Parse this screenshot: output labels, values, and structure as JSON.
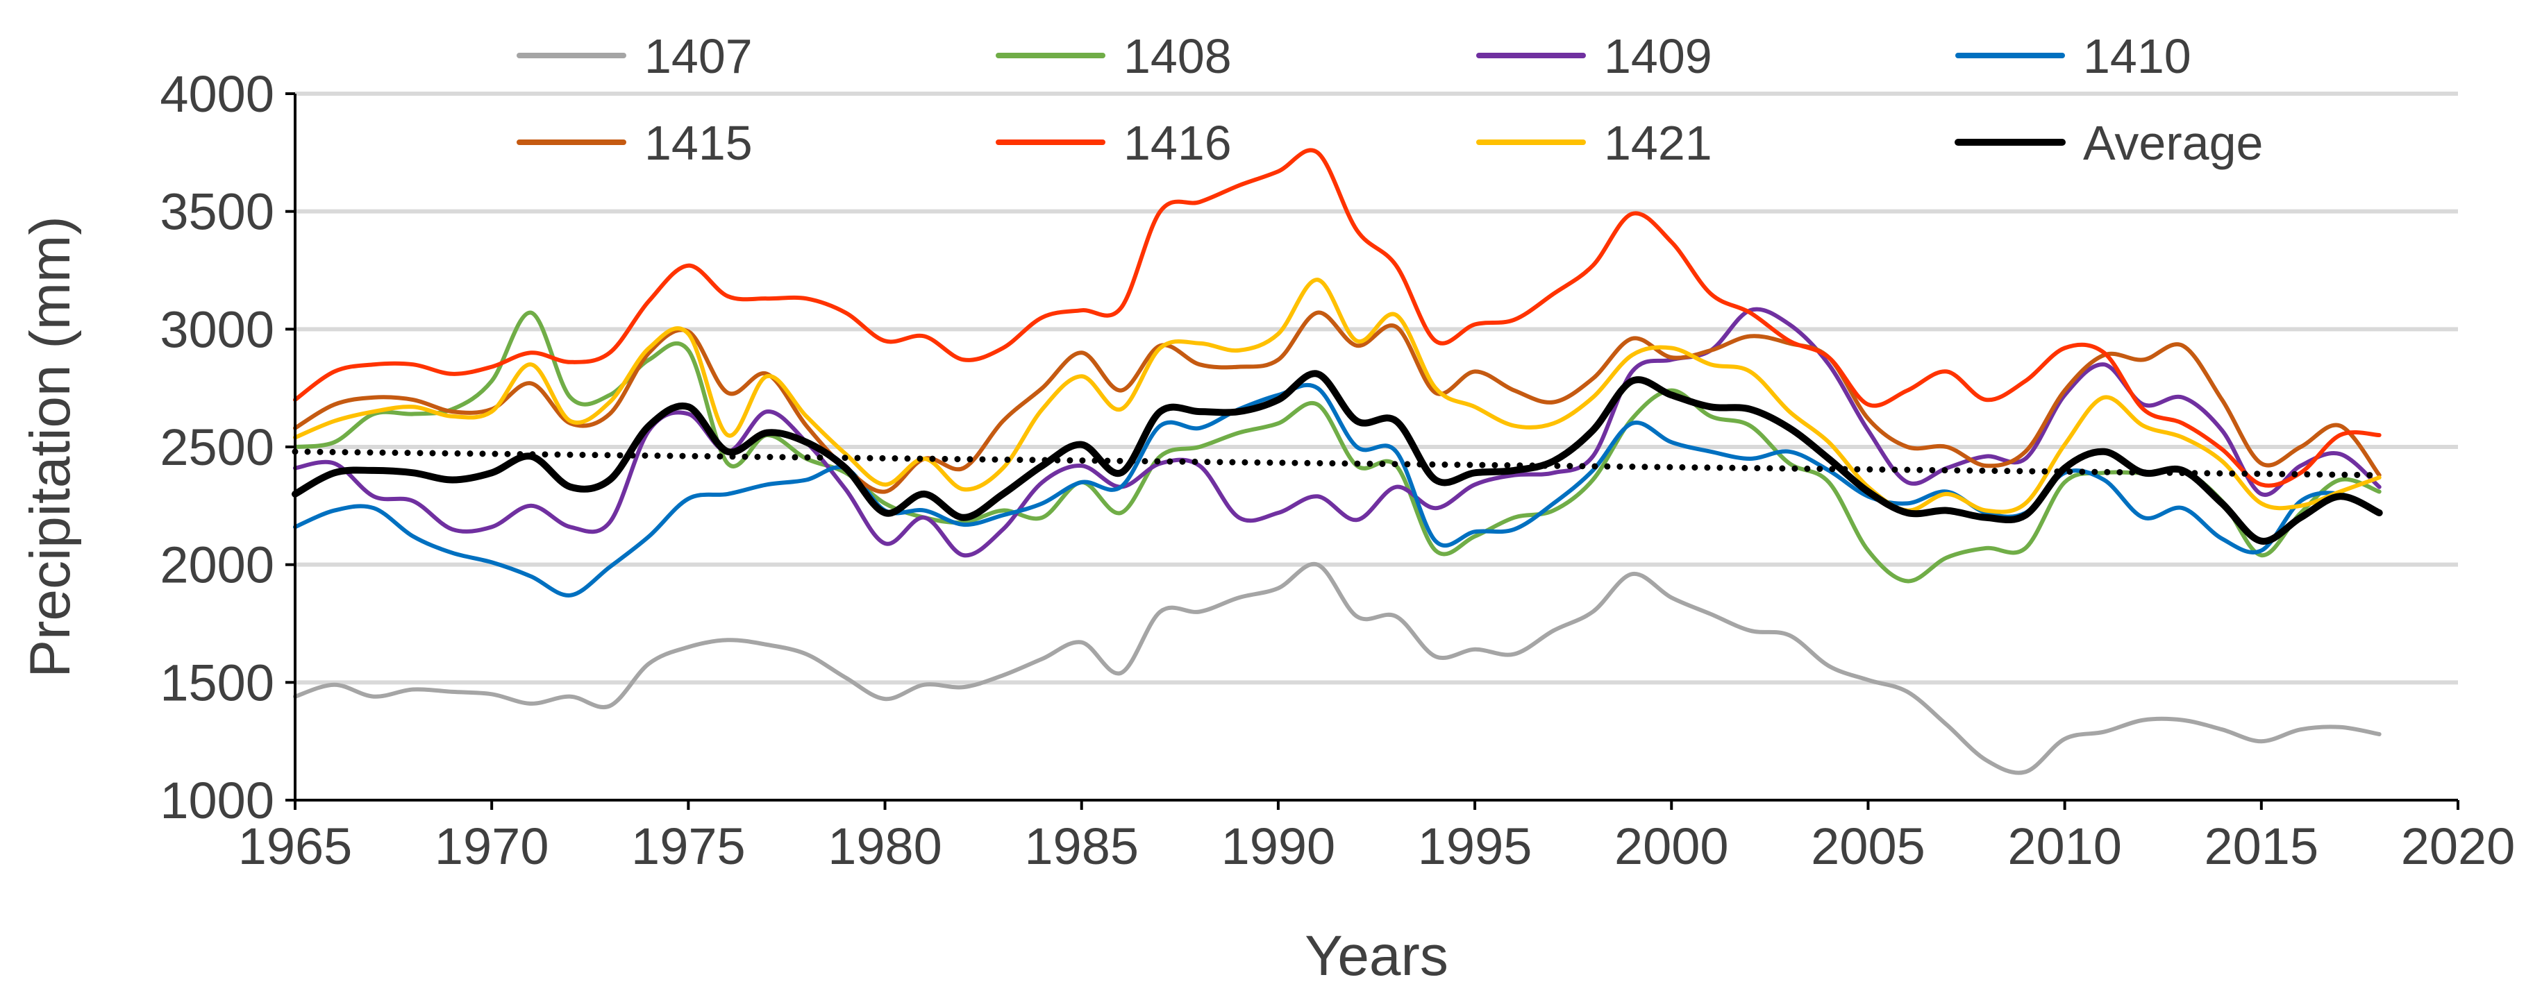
{
  "chart_data": {
    "type": "line",
    "title": "",
    "xlabel": "Years",
    "ylabel": "Precipitation (mm)",
    "xlim": [
      1965,
      2020
    ],
    "ylim": [
      1000,
      4000
    ],
    "xticks": [
      1965,
      1970,
      1975,
      1980,
      1985,
      1990,
      1995,
      2000,
      2005,
      2010,
      2015,
      2020
    ],
    "yticks": [
      1000,
      1500,
      2000,
      2500,
      3000,
      3500,
      4000
    ],
    "grid": "horizontal",
    "legend_position": "top",
    "x": [
      1965,
      1966,
      1967,
      1968,
      1969,
      1970,
      1971,
      1972,
      1973,
      1974,
      1975,
      1976,
      1977,
      1978,
      1979,
      1980,
      1981,
      1982,
      1983,
      1984,
      1985,
      1986,
      1987,
      1988,
      1989,
      1990,
      1991,
      1992,
      1993,
      1994,
      1995,
      1996,
      1997,
      1998,
      1999,
      2000,
      2001,
      2002,
      2003,
      2004,
      2005,
      2006,
      2007,
      2008,
      2009,
      2010,
      2011,
      2012,
      2013,
      2014,
      2015,
      2016,
      2017,
      2018
    ],
    "series": [
      {
        "name": "1407",
        "color": "#a5a5a5",
        "values": [
          1440,
          1490,
          1440,
          1470,
          1460,
          1450,
          1410,
          1440,
          1400,
          1580,
          1650,
          1680,
          1660,
          1620,
          1520,
          1430,
          1490,
          1480,
          1530,
          1600,
          1670,
          1540,
          1800,
          1800,
          1860,
          1900,
          2000,
          1780,
          1780,
          1610,
          1640,
          1620,
          1720,
          1800,
          1960,
          1860,
          1790,
          1720,
          1700,
          1570,
          1510,
          1460,
          1320,
          1170,
          1120,
          1260,
          1290,
          1340,
          1340,
          1300,
          1250,
          1300,
          1310,
          1280
        ]
      },
      {
        "name": "1408",
        "color": "#70ad47",
        "values": [
          2500,
          2520,
          2640,
          2640,
          2660,
          2780,
          3070,
          2710,
          2720,
          2870,
          2910,
          2430,
          2550,
          2450,
          2390,
          2260,
          2200,
          2180,
          2230,
          2200,
          2350,
          2220,
          2460,
          2500,
          2560,
          2600,
          2680,
          2420,
          2420,
          2060,
          2120,
          2200,
          2230,
          2360,
          2620,
          2740,
          2630,
          2590,
          2430,
          2350,
          2060,
          1930,
          2030,
          2070,
          2070,
          2350,
          2390,
          2390,
          2400,
          2270,
          2040,
          2220,
          2360,
          2310
        ]
      },
      {
        "name": "1409",
        "color": "#7030a0",
        "values": [
          2410,
          2430,
          2290,
          2270,
          2150,
          2160,
          2250,
          2160,
          2180,
          2570,
          2640,
          2480,
          2650,
          2520,
          2320,
          2090,
          2200,
          2040,
          2150,
          2350,
          2420,
          2330,
          2430,
          2420,
          2200,
          2220,
          2290,
          2190,
          2330,
          2240,
          2340,
          2380,
          2390,
          2460,
          2820,
          2870,
          2910,
          3080,
          3020,
          2850,
          2570,
          2350,
          2410,
          2460,
          2450,
          2720,
          2850,
          2680,
          2710,
          2570,
          2300,
          2420,
          2470,
          2330
        ]
      },
      {
        "name": "1410",
        "color": "#0070c0",
        "values": [
          2160,
          2230,
          2240,
          2120,
          2050,
          2010,
          1950,
          1870,
          1990,
          2120,
          2280,
          2300,
          2340,
          2360,
          2410,
          2230,
          2230,
          2170,
          2210,
          2260,
          2350,
          2330,
          2590,
          2580,
          2660,
          2720,
          2750,
          2500,
          2480,
          2100,
          2140,
          2150,
          2260,
          2400,
          2600,
          2520,
          2480,
          2450,
          2480,
          2400,
          2290,
          2260,
          2310,
          2220,
          2220,
          2390,
          2360,
          2200,
          2240,
          2110,
          2060,
          2270,
          2300,
          2220
        ]
      },
      {
        "name": "1415",
        "color": "#c55a11",
        "values": [
          2580,
          2680,
          2710,
          2700,
          2650,
          2660,
          2770,
          2600,
          2640,
          2900,
          2990,
          2730,
          2810,
          2590,
          2410,
          2310,
          2450,
          2410,
          2610,
          2750,
          2900,
          2740,
          2930,
          2850,
          2840,
          2870,
          3070,
          2930,
          3010,
          2730,
          2820,
          2740,
          2690,
          2790,
          2960,
          2880,
          2910,
          2970,
          2940,
          2880,
          2620,
          2500,
          2500,
          2420,
          2480,
          2740,
          2890,
          2870,
          2930,
          2700,
          2430,
          2500,
          2590,
          2380
        ]
      },
      {
        "name": "1416",
        "color": "#ff3300",
        "values": [
          2700,
          2820,
          2850,
          2850,
          2810,
          2840,
          2900,
          2860,
          2900,
          3120,
          3270,
          3140,
          3130,
          3130,
          3070,
          2950,
          2970,
          2870,
          2920,
          3050,
          3080,
          3090,
          3500,
          3540,
          3610,
          3670,
          3750,
          3420,
          3270,
          2950,
          3020,
          3040,
          3150,
          3270,
          3490,
          3370,
          3150,
          3070,
          2950,
          2880,
          2680,
          2740,
          2820,
          2700,
          2780,
          2920,
          2900,
          2660,
          2600,
          2490,
          2340,
          2390,
          2550,
          2550
        ]
      },
      {
        "name": "1421",
        "color": "#ffc000",
        "values": [
          2540,
          2610,
          2650,
          2670,
          2630,
          2650,
          2850,
          2610,
          2690,
          2920,
          2980,
          2550,
          2800,
          2630,
          2470,
          2340,
          2450,
          2320,
          2410,
          2660,
          2800,
          2660,
          2920,
          2940,
          2910,
          2980,
          3210,
          2950,
          3060,
          2750,
          2670,
          2590,
          2600,
          2710,
          2890,
          2920,
          2850,
          2820,
          2650,
          2520,
          2330,
          2230,
          2300,
          2230,
          2260,
          2510,
          2710,
          2590,
          2540,
          2440,
          2260,
          2250,
          2310,
          2370
        ]
      },
      {
        "name": "Average",
        "color": "#000000",
        "values": [
          2300,
          2390,
          2400,
          2390,
          2360,
          2390,
          2460,
          2330,
          2360,
          2590,
          2670,
          2480,
          2560,
          2520,
          2410,
          2220,
          2300,
          2200,
          2300,
          2420,
          2510,
          2390,
          2650,
          2650,
          2650,
          2700,
          2810,
          2610,
          2610,
          2360,
          2390,
          2400,
          2440,
          2570,
          2780,
          2720,
          2670,
          2660,
          2580,
          2450,
          2310,
          2220,
          2230,
          2200,
          2210,
          2410,
          2480,
          2390,
          2400,
          2260,
          2100,
          2200,
          2290,
          2220
        ]
      }
    ],
    "trendline": {
      "name": "Average trend",
      "style": "dotted",
      "color": "#000000",
      "from": {
        "x": 1965,
        "y": 2480
      },
      "to": {
        "x": 2018,
        "y": 2380
      }
    },
    "legend": [
      {
        "label": "1407",
        "color": "#a5a5a5"
      },
      {
        "label": "1408",
        "color": "#70ad47"
      },
      {
        "label": "1409",
        "color": "#7030a0"
      },
      {
        "label": "1410",
        "color": "#0070c0"
      },
      {
        "label": "1415",
        "color": "#c55a11"
      },
      {
        "label": "1416",
        "color": "#ff3300"
      },
      {
        "label": "1421",
        "color": "#ffc000"
      },
      {
        "label": "Average",
        "color": "#000000"
      }
    ]
  }
}
